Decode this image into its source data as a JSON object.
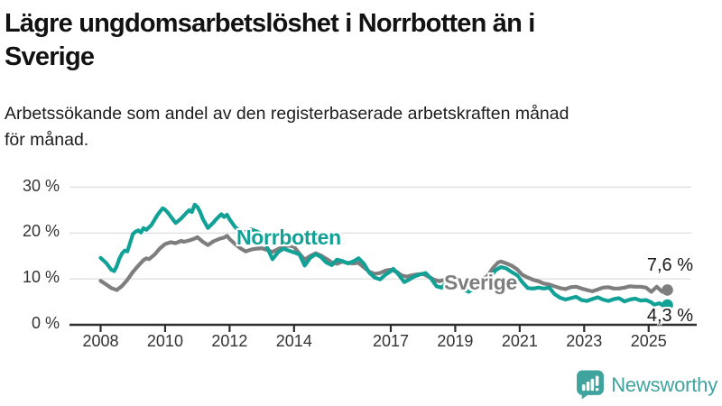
{
  "title": {
    "line1": "Lägre ungdomsarbetslöshet i Norrbotten än i",
    "line2": "Sverige"
  },
  "subtitle": {
    "line1": "Arbetssökande som andel av den registerbaserade arbetskraften månad",
    "line2": "för månad."
  },
  "branding": {
    "name": "Newsworthy",
    "icon": "bar-chart-speech-bubble-icon",
    "color": "#3FA49D"
  },
  "chart_data": {
    "type": "line",
    "title": "",
    "xlabel": "",
    "ylabel": "",
    "unit": "%",
    "grid": true,
    "legend_position": "inline-labels",
    "xlim": [
      2007.9,
      2026.3
    ],
    "ylim": [
      0,
      30
    ],
    "x_ticks": [
      2008,
      2010,
      2012,
      2014,
      2017,
      2019,
      2021,
      2023,
      2025
    ],
    "y_ticks": [
      {
        "value": 30,
        "label": "30 %"
      },
      {
        "value": 20,
        "label": "20 %"
      },
      {
        "value": 10,
        "label": "10 %"
      },
      {
        "value": 0,
        "label": "0 %"
      }
    ],
    "series": [
      {
        "id": "norrbotten",
        "name": "Norrbotten",
        "color": "#12A196",
        "end_value": 4.3,
        "end_label": "4,3 %",
        "points": [
          [
            2008.0,
            14.6
          ],
          [
            2008.17,
            13.5
          ],
          [
            2008.33,
            12.0
          ],
          [
            2008.42,
            11.7
          ],
          [
            2008.5,
            12.8
          ],
          [
            2008.58,
            14.4
          ],
          [
            2008.67,
            15.6
          ],
          [
            2008.75,
            16.2
          ],
          [
            2008.83,
            16.0
          ],
          [
            2008.92,
            18.0
          ],
          [
            2009.0,
            19.8
          ],
          [
            2009.08,
            20.3
          ],
          [
            2009.17,
            20.6
          ],
          [
            2009.25,
            20.1
          ],
          [
            2009.33,
            21.1
          ],
          [
            2009.42,
            20.7
          ],
          [
            2009.58,
            21.8
          ],
          [
            2009.75,
            23.8
          ],
          [
            2009.92,
            25.4
          ],
          [
            2010.0,
            25.1
          ],
          [
            2010.08,
            24.5
          ],
          [
            2010.25,
            22.9
          ],
          [
            2010.33,
            22.2
          ],
          [
            2010.5,
            23.2
          ],
          [
            2010.58,
            23.8
          ],
          [
            2010.67,
            24.5
          ],
          [
            2010.75,
            25.0
          ],
          [
            2010.83,
            24.6
          ],
          [
            2010.92,
            26.2
          ],
          [
            2011.0,
            25.7
          ],
          [
            2011.08,
            24.7
          ],
          [
            2011.17,
            23.1
          ],
          [
            2011.33,
            21.1
          ],
          [
            2011.5,
            22.3
          ],
          [
            2011.58,
            23.0
          ],
          [
            2011.67,
            23.6
          ],
          [
            2011.75,
            24.1
          ],
          [
            2011.83,
            23.5
          ],
          [
            2011.92,
            24.0
          ],
          [
            2012.0,
            23.0
          ],
          [
            2012.17,
            21.3
          ],
          [
            2012.33,
            20.3
          ],
          [
            2012.5,
            20.2
          ],
          [
            2012.67,
            20.8
          ],
          [
            2012.83,
            20.4
          ],
          [
            2013.0,
            19.8
          ],
          [
            2013.17,
            16.8
          ],
          [
            2013.33,
            14.3
          ],
          [
            2013.5,
            15.8
          ],
          [
            2013.67,
            16.6
          ],
          [
            2013.83,
            16.2
          ],
          [
            2014.0,
            15.8
          ],
          [
            2014.17,
            15.3
          ],
          [
            2014.33,
            12.9
          ],
          [
            2014.5,
            14.6
          ],
          [
            2014.67,
            15.4
          ],
          [
            2014.83,
            14.8
          ],
          [
            2015.0,
            13.6
          ],
          [
            2015.17,
            13.0
          ],
          [
            2015.33,
            14.2
          ],
          [
            2015.5,
            13.9
          ],
          [
            2015.67,
            13.4
          ],
          [
            2015.83,
            13.8
          ],
          [
            2016.0,
            14.5
          ],
          [
            2016.17,
            13.3
          ],
          [
            2016.33,
            11.4
          ],
          [
            2016.5,
            10.3
          ],
          [
            2016.67,
            9.9
          ],
          [
            2016.83,
            10.9
          ],
          [
            2017.0,
            11.7
          ],
          [
            2017.08,
            12.2
          ],
          [
            2017.25,
            10.9
          ],
          [
            2017.42,
            9.3
          ],
          [
            2017.58,
            9.9
          ],
          [
            2017.75,
            10.6
          ],
          [
            2017.92,
            11.0
          ],
          [
            2018.08,
            11.3
          ],
          [
            2018.25,
            10.1
          ],
          [
            2018.42,
            8.4
          ],
          [
            2018.58,
            8.1
          ],
          [
            2018.75,
            9.4
          ],
          [
            2018.92,
            9.0
          ],
          [
            2019.08,
            8.6
          ],
          [
            2019.25,
            7.8
          ],
          [
            2019.42,
            7.2
          ],
          [
            2019.58,
            7.9
          ],
          [
            2019.75,
            8.7
          ],
          [
            2019.92,
            9.3
          ],
          [
            2020.08,
            10.3
          ],
          [
            2020.25,
            11.9
          ],
          [
            2020.42,
            12.6
          ],
          [
            2020.58,
            12.3
          ],
          [
            2020.75,
            11.5
          ],
          [
            2020.92,
            10.8
          ],
          [
            2021.08,
            9.3
          ],
          [
            2021.25,
            8.0
          ],
          [
            2021.42,
            7.9
          ],
          [
            2021.58,
            8.1
          ],
          [
            2021.75,
            7.9
          ],
          [
            2021.92,
            8.1
          ],
          [
            2022.08,
            6.7
          ],
          [
            2022.25,
            5.9
          ],
          [
            2022.42,
            5.5
          ],
          [
            2022.58,
            5.8
          ],
          [
            2022.75,
            6.1
          ],
          [
            2022.92,
            5.4
          ],
          [
            2023.08,
            5.2
          ],
          [
            2023.25,
            5.6
          ],
          [
            2023.42,
            6.0
          ],
          [
            2023.58,
            5.5
          ],
          [
            2023.75,
            5.2
          ],
          [
            2023.92,
            5.6
          ],
          [
            2024.08,
            5.8
          ],
          [
            2024.25,
            5.1
          ],
          [
            2024.42,
            5.5
          ],
          [
            2024.58,
            5.7
          ],
          [
            2024.75,
            5.3
          ],
          [
            2024.92,
            5.4
          ],
          [
            2025.08,
            4.9
          ],
          [
            2025.17,
            4.4
          ],
          [
            2025.33,
            4.7
          ],
          [
            2025.45,
            4.2
          ],
          [
            2025.58,
            4.3
          ]
        ]
      },
      {
        "id": "sverige",
        "name": "Sverige",
        "color": "#7E7E7E",
        "end_value": 7.6,
        "end_label": "7,6 %",
        "points": [
          [
            2008.0,
            9.6
          ],
          [
            2008.17,
            8.8
          ],
          [
            2008.33,
            8.0
          ],
          [
            2008.5,
            7.6
          ],
          [
            2008.67,
            8.5
          ],
          [
            2008.83,
            9.8
          ],
          [
            2009.0,
            11.5
          ],
          [
            2009.17,
            12.9
          ],
          [
            2009.33,
            14.1
          ],
          [
            2009.42,
            14.5
          ],
          [
            2009.5,
            14.3
          ],
          [
            2009.67,
            15.3
          ],
          [
            2009.83,
            16.6
          ],
          [
            2010.0,
            17.6
          ],
          [
            2010.17,
            18.0
          ],
          [
            2010.33,
            17.8
          ],
          [
            2010.5,
            18.3
          ],
          [
            2010.58,
            18.1
          ],
          [
            2010.75,
            18.4
          ],
          [
            2010.92,
            18.8
          ],
          [
            2011.0,
            19.1
          ],
          [
            2011.17,
            18.1
          ],
          [
            2011.33,
            17.4
          ],
          [
            2011.5,
            18.2
          ],
          [
            2011.67,
            18.7
          ],
          [
            2011.83,
            19.0
          ],
          [
            2011.92,
            19.4
          ],
          [
            2012.0,
            18.7
          ],
          [
            2012.17,
            17.6
          ],
          [
            2012.33,
            16.7
          ],
          [
            2012.5,
            16.0
          ],
          [
            2012.67,
            16.4
          ],
          [
            2012.83,
            16.6
          ],
          [
            2013.0,
            16.7
          ],
          [
            2013.17,
            16.3
          ],
          [
            2013.33,
            15.9
          ],
          [
            2013.5,
            16.5
          ],
          [
            2013.67,
            17.0
          ],
          [
            2013.83,
            17.3
          ],
          [
            2014.0,
            17.0
          ],
          [
            2014.17,
            15.5
          ],
          [
            2014.33,
            14.2
          ],
          [
            2014.5,
            15.0
          ],
          [
            2014.67,
            15.6
          ],
          [
            2014.83,
            15.1
          ],
          [
            2015.0,
            14.4
          ],
          [
            2015.17,
            13.6
          ],
          [
            2015.33,
            13.3
          ],
          [
            2015.5,
            13.8
          ],
          [
            2015.67,
            13.5
          ],
          [
            2015.83,
            13.4
          ],
          [
            2016.0,
            13.5
          ],
          [
            2016.17,
            12.5
          ],
          [
            2016.33,
            11.6
          ],
          [
            2016.5,
            11.1
          ],
          [
            2016.67,
            11.3
          ],
          [
            2016.83,
            11.8
          ],
          [
            2017.0,
            12.0
          ],
          [
            2017.17,
            11.6
          ],
          [
            2017.33,
            10.8
          ],
          [
            2017.5,
            10.5
          ],
          [
            2017.67,
            10.8
          ],
          [
            2017.83,
            11.0
          ],
          [
            2018.0,
            11.1
          ],
          [
            2018.17,
            10.5
          ],
          [
            2018.33,
            9.9
          ],
          [
            2018.5,
            9.5
          ],
          [
            2018.67,
            9.8
          ],
          [
            2018.83,
            9.9
          ],
          [
            2019.0,
            9.7
          ],
          [
            2019.17,
            9.2
          ],
          [
            2019.33,
            8.9
          ],
          [
            2019.5,
            9.1
          ],
          [
            2019.67,
            9.5
          ],
          [
            2019.83,
            9.9
          ],
          [
            2020.0,
            10.6
          ],
          [
            2020.17,
            12.4
          ],
          [
            2020.33,
            13.6
          ],
          [
            2020.42,
            13.8
          ],
          [
            2020.58,
            13.4
          ],
          [
            2020.75,
            12.9
          ],
          [
            2020.92,
            12.1
          ],
          [
            2021.08,
            10.9
          ],
          [
            2021.25,
            10.3
          ],
          [
            2021.42,
            9.8
          ],
          [
            2021.58,
            9.5
          ],
          [
            2021.75,
            9.0
          ],
          [
            2021.92,
            8.8
          ],
          [
            2022.08,
            8.4
          ],
          [
            2022.25,
            8.0
          ],
          [
            2022.42,
            7.8
          ],
          [
            2022.58,
            8.2
          ],
          [
            2022.75,
            8.3
          ],
          [
            2022.92,
            7.9
          ],
          [
            2023.08,
            7.6
          ],
          [
            2023.25,
            7.3
          ],
          [
            2023.42,
            7.7
          ],
          [
            2023.58,
            8.1
          ],
          [
            2023.75,
            8.2
          ],
          [
            2023.92,
            7.9
          ],
          [
            2024.08,
            7.9
          ],
          [
            2024.25,
            8.1
          ],
          [
            2024.42,
            8.4
          ],
          [
            2024.58,
            8.3
          ],
          [
            2024.75,
            8.3
          ],
          [
            2024.92,
            8.1
          ],
          [
            2025.08,
            7.2
          ],
          [
            2025.25,
            8.3
          ],
          [
            2025.42,
            7.2
          ],
          [
            2025.58,
            7.6
          ]
        ]
      }
    ]
  }
}
